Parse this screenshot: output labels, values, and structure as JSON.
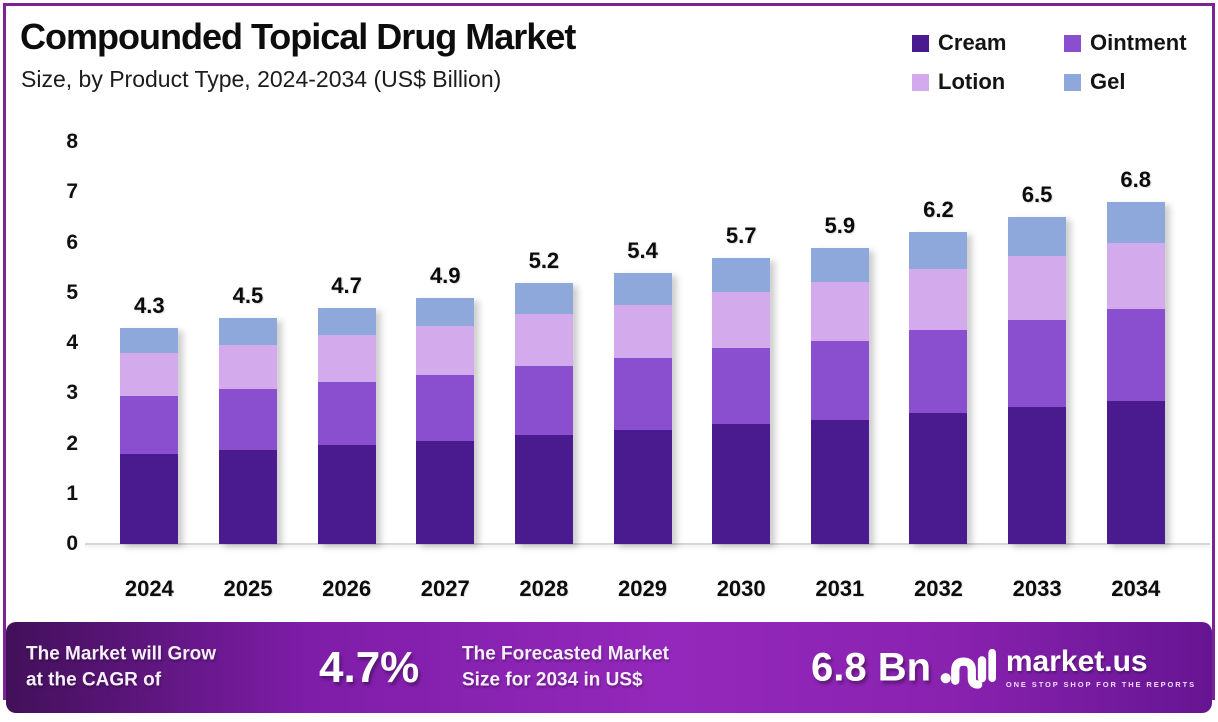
{
  "header": {
    "title": "Compounded Topical Drug Market",
    "subtitle": "Size, by Product Type, 2024-2034 (US$ Billion)"
  },
  "legend": [
    {
      "label": "Cream",
      "color": "#4A1A8F"
    },
    {
      "label": "Ointment",
      "color": "#8A4FCE"
    },
    {
      "label": "Lotion",
      "color": "#D3AAEB"
    },
    {
      "label": "Gel",
      "color": "#8EA8DC"
    }
  ],
  "chart_data": {
    "type": "bar",
    "stacked": true,
    "title": "Compounded Topical Drug Market Size, by Product Type, 2024-2034 (US$ Billion)",
    "categories": [
      "2024",
      "2025",
      "2026",
      "2027",
      "2028",
      "2029",
      "2030",
      "2031",
      "2032",
      "2033",
      "2034"
    ],
    "series": [
      {
        "name": "Cream",
        "color": "#4A1A8F",
        "values": [
          1.8,
          1.88,
          1.97,
          2.05,
          2.17,
          2.26,
          2.38,
          2.47,
          2.6,
          2.72,
          2.85
        ]
      },
      {
        "name": "Ointment",
        "color": "#8A4FCE",
        "values": [
          1.15,
          1.2,
          1.26,
          1.32,
          1.38,
          1.44,
          1.52,
          1.58,
          1.66,
          1.74,
          1.82
        ]
      },
      {
        "name": "Lotion",
        "color": "#D3AAEB",
        "values": [
          0.85,
          0.88,
          0.92,
          0.96,
          1.02,
          1.06,
          1.12,
          1.16,
          1.22,
          1.28,
          1.33
        ]
      },
      {
        "name": "Gel",
        "color": "#8EA8DC",
        "values": [
          0.5,
          0.54,
          0.55,
          0.57,
          0.63,
          0.64,
          0.68,
          0.69,
          0.72,
          0.76,
          0.8
        ]
      }
    ],
    "totals": [
      4.3,
      4.5,
      4.7,
      4.9,
      5.2,
      5.4,
      5.7,
      5.9,
      6.2,
      6.5,
      6.8
    ],
    "total_labels": [
      "4.3",
      "4.5",
      "4.7",
      "4.9",
      "5.2",
      "5.4",
      "5.7",
      "5.9",
      "6.2",
      "6.5",
      "6.8"
    ],
    "xlabel": "",
    "ylabel": "",
    "ylim": [
      0,
      8
    ],
    "yticks": [
      0,
      1,
      2,
      3,
      4,
      5,
      6,
      7,
      8
    ],
    "grid": false,
    "legend_position": "top-right"
  },
  "banner": {
    "cagr_label_line1": "The Market will Grow",
    "cagr_label_line2": "at the CAGR of",
    "cagr_value": "4.7%",
    "forecast_label_line1": "The Forecasted Market",
    "forecast_label_line2": "Size for 2034 in US$",
    "forecast_value": "6.8 Bn",
    "logo_text": "market.us",
    "logo_tagline": "ONE STOP SHOP FOR THE REPORTS"
  },
  "colors": {
    "frame_border": "#7B2397",
    "banner_gradient_left": "#421059",
    "banner_gradient_mid": "#9428BC",
    "banner_gradient_right": "#661592",
    "axis_line": "#d6d6d6",
    "text": "#0d0d0d"
  }
}
